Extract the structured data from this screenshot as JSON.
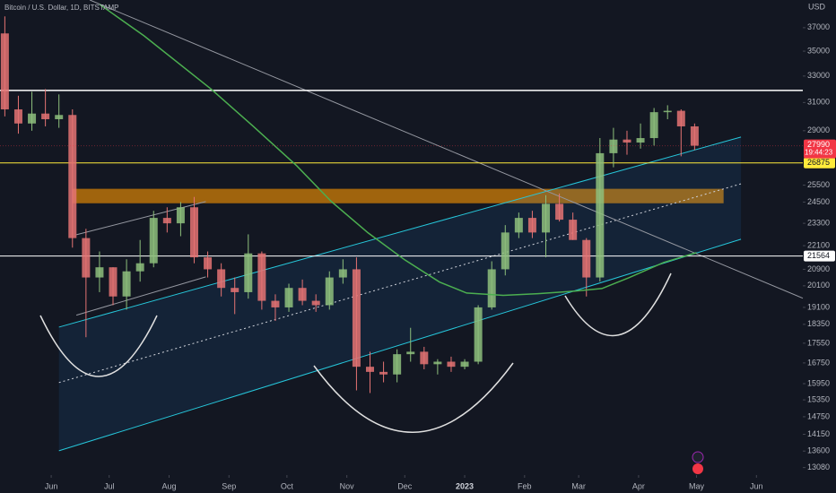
{
  "chart_data": {
    "type": "candlestick",
    "title": "Bitcoin / U.S. Dollar, 1D, BITSTAMP",
    "y_axis_unit": "USD",
    "log_scale": true,
    "grid": false,
    "up_color": "#8ec07c",
    "down_color": "#e57373",
    "xlim": [
      -26.5,
      389
    ],
    "ylim": [
      12850,
      39500
    ],
    "xticks": [
      {
        "value": 0,
        "label": "Jun"
      },
      {
        "value": 30,
        "label": "Jul"
      },
      {
        "value": 61,
        "label": "Aug"
      },
      {
        "value": 92,
        "label": "Sep"
      },
      {
        "value": 122,
        "label": "Oct"
      },
      {
        "value": 153,
        "label": "Nov"
      },
      {
        "value": 183,
        "label": "Dec"
      },
      {
        "value": 214,
        "label": "2023"
      },
      {
        "value": 245,
        "label": "Feb"
      },
      {
        "value": 273,
        "label": "Mar"
      },
      {
        "value": 304,
        "label": "Apr"
      },
      {
        "value": 334,
        "label": "May"
      },
      {
        "value": 365,
        "label": "Jun"
      }
    ],
    "yticks": [
      37000,
      35000,
      33000,
      31000,
      29000,
      25500,
      24500,
      23300,
      22100,
      20900,
      20100,
      19100,
      18350,
      17550,
      16750,
      15950,
      15350,
      14750,
      14150,
      13600,
      13080
    ],
    "x": [
      -24,
      -17,
      -10,
      -3,
      4,
      11,
      18,
      25,
      32,
      39,
      46,
      53,
      60,
      67,
      74,
      81,
      88,
      95,
      102,
      109,
      116,
      123,
      130,
      137,
      144,
      151,
      158,
      165,
      172,
      179,
      186,
      193,
      200,
      207,
      214,
      221,
      228,
      235,
      242,
      249,
      256,
      263,
      270,
      277,
      284,
      291,
      298,
      305,
      312,
      319,
      326,
      333
    ],
    "open": [
      36500,
      30500,
      29500,
      30200,
      29800,
      30100,
      22500,
      20500,
      21000,
      19600,
      20800,
      21200,
      23600,
      23300,
      24200,
      21500,
      20900,
      20000,
      19800,
      21700,
      19400,
      19100,
      20000,
      19400,
      19200,
      20500,
      20900,
      16600,
      16400,
      16300,
      17100,
      17200,
      16700,
      16800,
      16600,
      16800,
      19100,
      20900,
      22800,
      23600,
      22800,
      24400,
      23500,
      22400,
      20500,
      27500,
      28400,
      28200,
      28500,
      30300,
      30400,
      29300
    ],
    "high": [
      38000,
      31500,
      31800,
      32000,
      31600,
      30500,
      23000,
      21800,
      21000,
      21400,
      22400,
      24000,
      24200,
      24500,
      24800,
      21800,
      21200,
      20500,
      22700,
      21800,
      19700,
      20200,
      20400,
      19700,
      20800,
      21400,
      21500,
      17200,
      16800,
      17300,
      18200,
      17400,
      16900,
      17000,
      16900,
      19200,
      21300,
      23200,
      23900,
      24000,
      24900,
      25000,
      23900,
      22500,
      28500,
      29200,
      29000,
      29500,
      30600,
      30800,
      30500,
      29500
    ],
    "low": [
      30000,
      28800,
      29000,
      29300,
      29200,
      22000,
      17800,
      19800,
      19200,
      19000,
      20300,
      21000,
      22800,
      22600,
      21200,
      20500,
      19600,
      18800,
      19500,
      19000,
      18500,
      18900,
      19200,
      18900,
      19000,
      20200,
      15700,
      15600,
      16000,
      16000,
      16800,
      16500,
      16300,
      16400,
      16500,
      16700,
      19000,
      20600,
      22500,
      22500,
      21500,
      23400,
      22400,
      19600,
      20300,
      26600,
      27400,
      27800,
      28000,
      29800,
      27300,
      27700
    ],
    "close": [
      30500,
      29500,
      30200,
      29800,
      30100,
      22500,
      20500,
      21000,
      19600,
      20800,
      21200,
      23600,
      23300,
      24200,
      21500,
      20900,
      20000,
      19800,
      21700,
      19400,
      19100,
      20000,
      19400,
      19200,
      20500,
      20900,
      16600,
      16400,
      16300,
      17100,
      17200,
      16700,
      16800,
      16600,
      16800,
      19100,
      20900,
      22800,
      23600,
      22800,
      24400,
      23500,
      22400,
      20500,
      27500,
      28400,
      28200,
      28500,
      30300,
      30400,
      29300,
      27990
    ],
    "last_price": 27990,
    "last_price_color": "#f23645",
    "countdown": "19:44:23",
    "levels": [
      {
        "value": 31900,
        "color": "#ffffff"
      },
      {
        "value": 26875,
        "color": "#ffeb3b",
        "label_color": "#ffeb3b"
      },
      {
        "value": 21564,
        "color": "#ffffff",
        "label_color": "#ffffff"
      }
    ],
    "zone": {
      "x": [
        11,
        348
      ],
      "values": [
        24430,
        25280
      ],
      "color": "#ff9800"
    },
    "channel": {
      "color": "#26c6da",
      "fill": "#2196f3",
      "upper": [
        [
          4,
          18230
        ],
        [
          357,
          28570
        ]
      ],
      "middle": [
        [
          4,
          15990
        ],
        [
          357,
          25580
        ]
      ],
      "lower": [
        [
          4,
          13610
        ],
        [
          357,
          22440
        ]
      ]
    },
    "small_channel": {
      "color": "#9598a1",
      "upper": [
        [
          13,
          22680
        ],
        [
          80,
          24530
        ]
      ],
      "lower": [
        [
          13,
          18750
        ],
        [
          80,
          20530
        ]
      ]
    },
    "trendline": {
      "color": "#9598a1",
      "points": [
        [
          20,
          39500
        ],
        [
          389,
          19520
        ]
      ]
    },
    "moving_average": {
      "color": "#4caf50",
      "points": [
        [
          25,
          39100
        ],
        [
          48,
          36300
        ],
        [
          83,
          31970
        ],
        [
          104,
          29370
        ],
        [
          127,
          26700
        ],
        [
          145,
          24530
        ],
        [
          164,
          22780
        ],
        [
          183,
          21370
        ],
        [
          201,
          20280
        ],
        [
          215,
          19760
        ],
        [
          234,
          19650
        ],
        [
          252,
          19730
        ],
        [
          271,
          19850
        ],
        [
          285,
          19970
        ],
        [
          299,
          20490
        ],
        [
          317,
          21240
        ],
        [
          334,
          21740
        ]
      ]
    }
  }
}
